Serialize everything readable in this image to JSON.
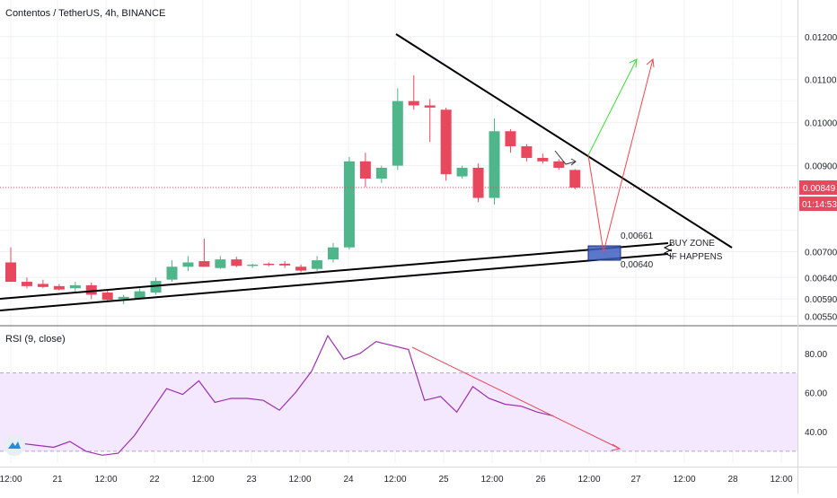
{
  "header": {
    "symbol_title": "Contentos / TetherUS, 4h, BINANCE",
    "rsi_title": "RSI (9, close)"
  },
  "price_axis": {
    "ticks": [
      "0.01200",
      "0.01100",
      "0.01000",
      "0.00900",
      "0.00700",
      "0.00640",
      "0.00590",
      "0.00550"
    ],
    "current_price_label": "0.00849",
    "countdown_label": "01:14:53",
    "current_price": 0.00849
  },
  "rsi_axis": {
    "ticks": [
      "80.00",
      "60.00",
      "40.00"
    ]
  },
  "time_axis": {
    "labels": [
      "12:00",
      "21",
      "12:00",
      "22",
      "12:00",
      "23",
      "12:00",
      "24",
      "12:00",
      "25",
      "12:00",
      "26",
      "12:00",
      "27",
      "12:00",
      "28",
      "12:00"
    ]
  },
  "annotations": {
    "level_upper": "0,00661",
    "level_lower": "0,00640",
    "buy_zone_line1": "BUY ZONE",
    "buy_zone_line2": "IF HAPPENS"
  },
  "colors": {
    "bull": "#4fb58a",
    "bear": "#e8485d",
    "rsi_line": "#9b2fae",
    "rsi_band": "#f3e8fd",
    "price_line": "#e8485d",
    "zone_fill": "#3f5fbf"
  },
  "chart_data": [
    {
      "type": "candlestick",
      "title": "Contentos / TetherUS, 4h, BINANCE",
      "ylim": [
        0.0053,
        0.0126
      ],
      "candles": [
        {
          "o": 0.00675,
          "h": 0.0071,
          "l": 0.0063,
          "c": 0.0063
        },
        {
          "o": 0.0063,
          "h": 0.0064,
          "l": 0.00615,
          "c": 0.0062
        },
        {
          "o": 0.00625,
          "h": 0.00635,
          "l": 0.00615,
          "c": 0.00618
        },
        {
          "o": 0.0062,
          "h": 0.00625,
          "l": 0.0061,
          "c": 0.00612
        },
        {
          "o": 0.00615,
          "h": 0.0063,
          "l": 0.00605,
          "c": 0.00622
        },
        {
          "o": 0.00622,
          "h": 0.00628,
          "l": 0.0059,
          "c": 0.006
        },
        {
          "o": 0.00605,
          "h": 0.00612,
          "l": 0.00585,
          "c": 0.00588
        },
        {
          "o": 0.0059,
          "h": 0.006,
          "l": 0.00578,
          "c": 0.00595
        },
        {
          "o": 0.00592,
          "h": 0.00615,
          "l": 0.0059,
          "c": 0.00608
        },
        {
          "o": 0.00605,
          "h": 0.0064,
          "l": 0.006,
          "c": 0.00632
        },
        {
          "o": 0.00635,
          "h": 0.0068,
          "l": 0.0063,
          "c": 0.00665
        },
        {
          "o": 0.00665,
          "h": 0.0069,
          "l": 0.00655,
          "c": 0.00675
        },
        {
          "o": 0.00678,
          "h": 0.0073,
          "l": 0.00665,
          "c": 0.00665
        },
        {
          "o": 0.00662,
          "h": 0.0069,
          "l": 0.0066,
          "c": 0.00682
        },
        {
          "o": 0.00682,
          "h": 0.00688,
          "l": 0.00664,
          "c": 0.00667
        },
        {
          "o": 0.00667,
          "h": 0.00672,
          "l": 0.00662,
          "c": 0.0067
        },
        {
          "o": 0.00672,
          "h": 0.00675,
          "l": 0.00666,
          "c": 0.0067
        },
        {
          "o": 0.00672,
          "h": 0.00678,
          "l": 0.00662,
          "c": 0.00668
        },
        {
          "o": 0.00665,
          "h": 0.0067,
          "l": 0.00652,
          "c": 0.00656
        },
        {
          "o": 0.0066,
          "h": 0.0069,
          "l": 0.00655,
          "c": 0.0068
        },
        {
          "o": 0.00682,
          "h": 0.0072,
          "l": 0.00675,
          "c": 0.0071
        },
        {
          "o": 0.0071,
          "h": 0.0092,
          "l": 0.00705,
          "c": 0.0091
        },
        {
          "o": 0.0091,
          "h": 0.0093,
          "l": 0.0085,
          "c": 0.0087
        },
        {
          "o": 0.0087,
          "h": 0.009,
          "l": 0.0086,
          "c": 0.00895
        },
        {
          "o": 0.009,
          "h": 0.0108,
          "l": 0.0089,
          "c": 0.0105
        },
        {
          "o": 0.0105,
          "h": 0.0111,
          "l": 0.0103,
          "c": 0.0104
        },
        {
          "o": 0.0104,
          "h": 0.01055,
          "l": 0.00955,
          "c": 0.01035
        },
        {
          "o": 0.0103,
          "h": 0.01035,
          "l": 0.00865,
          "c": 0.0088
        },
        {
          "o": 0.00875,
          "h": 0.009,
          "l": 0.0087,
          "c": 0.00895
        },
        {
          "o": 0.00895,
          "h": 0.00905,
          "l": 0.00815,
          "c": 0.00825
        },
        {
          "o": 0.00825,
          "h": 0.0101,
          "l": 0.0081,
          "c": 0.0098
        },
        {
          "o": 0.0098,
          "h": 0.00985,
          "l": 0.0093,
          "c": 0.00945
        },
        {
          "o": 0.00945,
          "h": 0.0095,
          "l": 0.0091,
          "c": 0.00918
        },
        {
          "o": 0.00918,
          "h": 0.00928,
          "l": 0.00905,
          "c": 0.0091
        },
        {
          "o": 0.0091,
          "h": 0.00915,
          "l": 0.0089,
          "c": 0.00895
        },
        {
          "o": 0.0089,
          "h": 0.00892,
          "l": 0.00845,
          "c": 0.00849
        }
      ]
    },
    {
      "type": "line",
      "title": "RSI (9, close)",
      "ylim": [
        24,
        90
      ],
      "band": [
        30,
        70
      ],
      "values": [
        36,
        34,
        33,
        32,
        35,
        30,
        28,
        29,
        38,
        50,
        62,
        59,
        66,
        55,
        57,
        57,
        56,
        51,
        60,
        71,
        89,
        77,
        80,
        86,
        84,
        82,
        56,
        58,
        50,
        63,
        57,
        54,
        53,
        50,
        48
      ]
    }
  ]
}
